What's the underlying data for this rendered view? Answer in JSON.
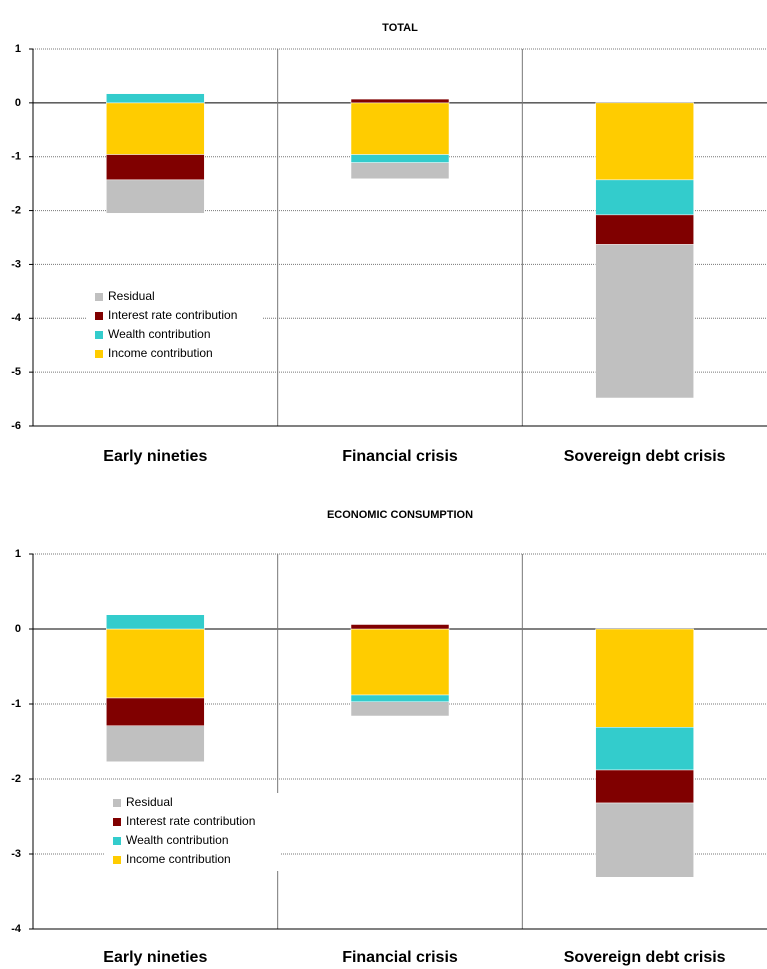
{
  "chart_data": [
    {
      "type": "bar",
      "stacked": true,
      "title": "TOTAL",
      "categories": [
        "Early nineties",
        "Financial crisis",
        "Sovereign debt crisis"
      ],
      "series": [
        {
          "name": "Income contribution",
          "color": "#ffcc00",
          "values": [
            -0.96,
            -0.96,
            -1.43
          ]
        },
        {
          "name": "Wealth contribution",
          "color": "#33cccc",
          "values": [
            0.17,
            -0.15,
            -0.65
          ]
        },
        {
          "name": "Interest rate contribution",
          "color": "#800000",
          "values": [
            -0.47,
            0.07,
            -0.55
          ]
        },
        {
          "name": "Residual",
          "color": "#c0c0c0",
          "values": [
            -0.62,
            -0.3,
            -2.85
          ]
        }
      ],
      "ylim": [
        -6,
        1
      ],
      "yticks": [
        -6,
        -5,
        -4,
        -3,
        -2,
        -1,
        0,
        1
      ],
      "grid": true
    },
    {
      "type": "bar",
      "stacked": true,
      "title": "ECONOMIC CONSUMPTION",
      "categories": [
        "Early nineties",
        "Financial crisis",
        "Sovereign debt crisis"
      ],
      "series": [
        {
          "name": "Income contribution",
          "color": "#ffcc00",
          "values": [
            -0.92,
            -0.88,
            -1.31
          ]
        },
        {
          "name": "Wealth contribution",
          "color": "#33cccc",
          "values": [
            0.19,
            -0.09,
            -0.57
          ]
        },
        {
          "name": "Interest rate contribution",
          "color": "#800000",
          "values": [
            -0.37,
            0.06,
            -0.44
          ]
        },
        {
          "name": "Residual",
          "color": "#c0c0c0",
          "values": [
            -0.48,
            -0.19,
            -0.99
          ]
        }
      ],
      "ylim": [
        -4,
        1
      ],
      "yticks": [
        -4,
        -3,
        -2,
        -1,
        0,
        1
      ],
      "grid": true
    }
  ]
}
